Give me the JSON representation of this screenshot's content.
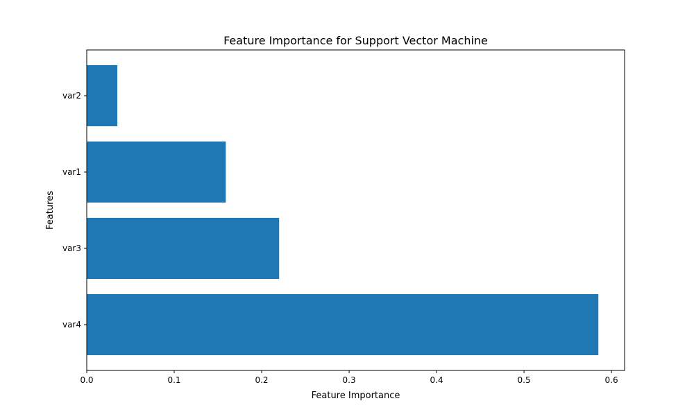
{
  "chart_data": {
    "type": "bar",
    "orientation": "horizontal",
    "title": "Feature Importance for Support Vector Machine",
    "xlabel": "Feature Importance",
    "ylabel": "Features",
    "categories": [
      "var4",
      "var3",
      "var1",
      "var2"
    ],
    "values": [
      0.585,
      0.22,
      0.159,
      0.035
    ],
    "xlim": [
      0.0,
      0.615
    ],
    "xticks": [
      0.0,
      0.1,
      0.2,
      0.3,
      0.4,
      0.5,
      0.6
    ],
    "xtick_labels": [
      "0.0",
      "0.1",
      "0.2",
      "0.3",
      "0.4",
      "0.5",
      "0.6"
    ],
    "grid": false,
    "legend": "none",
    "bar_color": "#1f77b4"
  }
}
